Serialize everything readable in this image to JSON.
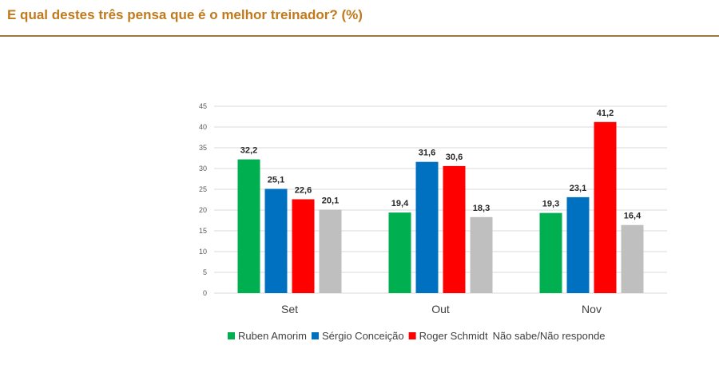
{
  "page": {
    "title": "E qual destes três pensa que é o melhor treinador? (%)"
  },
  "chart_data": {
    "type": "bar",
    "title": "E qual destes três pensa que é o melhor treinador? (%)",
    "xlabel": "",
    "ylabel": "",
    "ylim": [
      0,
      45
    ],
    "yticks": [
      0,
      5,
      10,
      15,
      20,
      25,
      30,
      35,
      40,
      45
    ],
    "grid": true,
    "legend_position": "bottom",
    "categories": [
      "Set",
      "Out",
      "Nov"
    ],
    "series": [
      {
        "name": "Ruben Amorim",
        "color": "#00b050",
        "values": [
          32.2,
          19.4,
          19.3
        ],
        "labels": [
          "32,2",
          "19,4",
          "19,3"
        ],
        "show_swatch": true
      },
      {
        "name": "Sérgio Conceição",
        "color": "#0070c0",
        "values": [
          25.1,
          31.6,
          23.1
        ],
        "labels": [
          "25,1",
          "31,6",
          "23,1"
        ],
        "show_swatch": true
      },
      {
        "name": "Roger Schmidt",
        "color": "#ff0000",
        "values": [
          22.6,
          30.6,
          41.2
        ],
        "labels": [
          "22,6",
          "30,6",
          "41,2"
        ],
        "show_swatch": true
      },
      {
        "name": "Não sabe/Não responde",
        "color": "#bfbfbf",
        "values": [
          20.1,
          18.3,
          16.4
        ],
        "labels": [
          "20,1",
          "18,3",
          "16,4"
        ],
        "show_swatch": false
      }
    ]
  }
}
